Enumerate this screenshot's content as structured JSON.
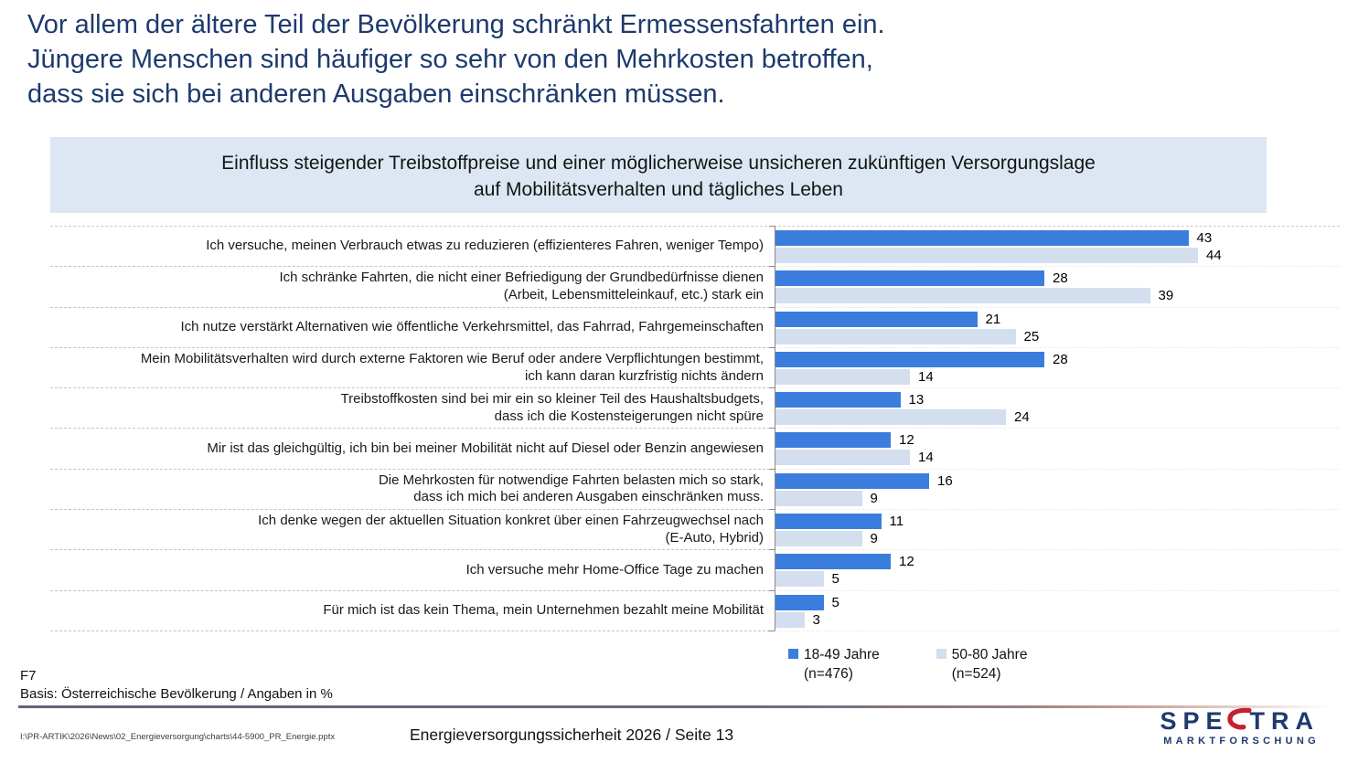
{
  "header": {
    "title_lines": [
      "Vor allem der ältere Teil der Bevölkerung schränkt Ermessensfahrten ein.",
      "Jüngere Menschen sind häufiger so sehr von den Mehrkosten betroffen,",
      "dass sie sich bei anderen Ausgaben einschränken müssen."
    ]
  },
  "chart_data": {
    "type": "bar",
    "orientation": "horizontal",
    "title": "Einfluss steigender Treibstoffpreise und einer möglicherweise unsicheren zukünftigen Versorgungslage auf Mobilitätsverhalten und tägliches Leben",
    "title_lines": [
      "Einfluss steigender Treibstoffpreise und einer möglicherweise unsicheren zukünftigen Versorgungslage",
      "auf Mobilitätsverhalten und tägliches Leben"
    ],
    "categories": [
      "Ich versuche, meinen Verbrauch etwas zu reduzieren (effizienteres Fahren, weniger Tempo)",
      "Ich schränke Fahrten, die nicht einer Befriedigung der Grundbedürfnisse dienen\n(Arbeit, Lebensmitteleinkauf, etc.) stark ein",
      "Ich nutze verstärkt Alternativen wie öffentliche Verkehrsmittel, das Fahrrad, Fahrgemeinschaften",
      "Mein Mobilitätsverhalten wird durch externe Faktoren wie Beruf oder andere Verpflichtungen bestimmt,\nich kann daran kurzfristig nichts ändern",
      "Treibstoffkosten sind bei mir ein so kleiner Teil des Haushaltsbudgets,\ndass ich die Kostensteigerungen nicht spüre",
      "Mir ist das gleichgültig, ich bin bei meiner Mobilität nicht auf Diesel oder Benzin angewiesen",
      "Die Mehrkosten für notwendige Fahrten belasten mich so stark,\ndass ich mich bei anderen Ausgaben einschränken muss.",
      "Ich denke wegen der aktuellen Situation konkret über einen Fahrzeugwechsel nach\n(E-Auto, Hybrid)",
      "Ich versuche mehr Home-Office Tage zu machen",
      "Für mich ist das kein Thema, mein Unternehmen bezahlt meine Mobilität"
    ],
    "series": [
      {
        "name": "18-49 Jahre (n=476)",
        "color": "#3b7ddd",
        "values": [
          43,
          28,
          21,
          28,
          13,
          12,
          16,
          11,
          12,
          5
        ]
      },
      {
        "name": "50-80 Jahre (n=524)",
        "color": "#d3deee",
        "values": [
          44,
          39,
          25,
          14,
          24,
          14,
          9,
          9,
          5,
          3
        ]
      }
    ],
    "value_unit": "%",
    "xlim": [
      0,
      59
    ],
    "data_labels": true,
    "grid": "dashed-row-separators",
    "legend_position": "bottom"
  },
  "legend": {
    "items": [
      {
        "label": "18-49 Jahre",
        "sub": "(n=476)",
        "color": "#3b7ddd"
      },
      {
        "label": "50-80 Jahre",
        "sub": "(n=524)",
        "color": "#d3deee"
      }
    ]
  },
  "footer": {
    "question": "F7",
    "basis": "Basis: Österreichische Bevölkerung / Angaben in %",
    "file_path": "I:\\PR-ARTIK\\2026\\News\\02_Energieversorgung\\charts\\44-5900_PR_Energie.pptx",
    "center_text": "Energieversorgungssicherheit 2026  /  Seite 13"
  },
  "logo": {
    "name": "Spectra Marktforschung",
    "part1": "SPE",
    "part2": "TRA",
    "subtitle": "MARKTFORSCHUNG",
    "navy": "#1e3a6e",
    "accent": "#c32033"
  }
}
